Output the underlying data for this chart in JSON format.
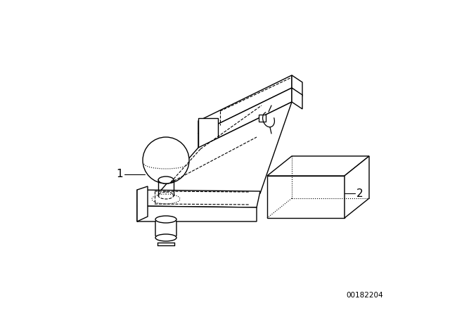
{
  "background_color": "#ffffff",
  "line_color": "#000000",
  "dashed_color": "#000000",
  "label_1_text": "1",
  "label_2_text": "2",
  "part_number": "00182204",
  "figsize": [
    6.4,
    4.48
  ],
  "dpi": 100
}
